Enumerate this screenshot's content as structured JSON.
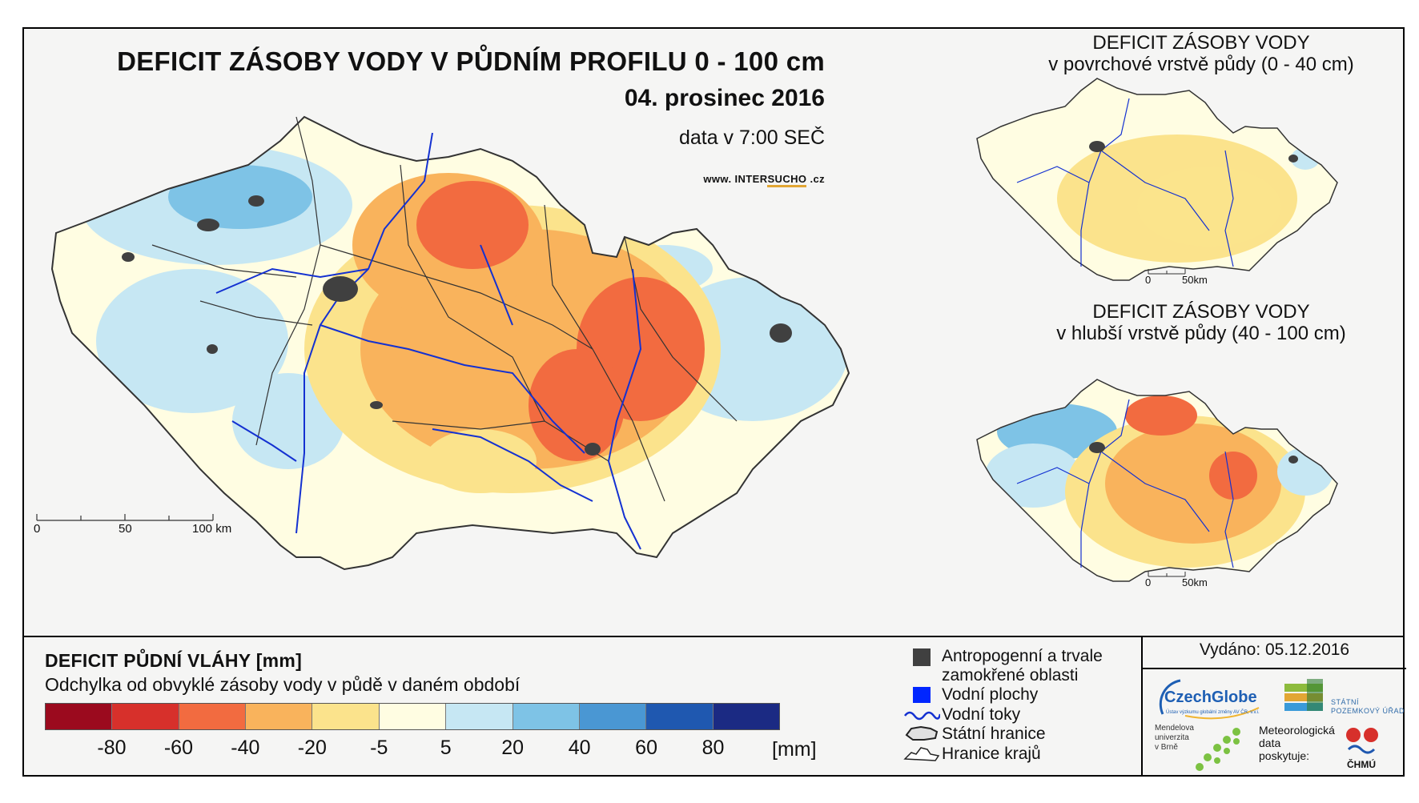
{
  "main": {
    "title": "DEFICIT ZÁSOBY VODY V PŮDNÍM PROFILU 0 - 100 cm",
    "date": "04. prosinec 2016",
    "data_time": "data v 7:00 SEČ",
    "website_prefix": "www. INTER",
    "website_highlight": "SUCHO",
    "website_suffix": " .cz",
    "scale_labels": [
      "0",
      "50",
      "100 km"
    ]
  },
  "top_inset": {
    "title_line1": "DEFICIT ZÁSOBY VODY",
    "title_line2": "v povrchové vrstvě půdy (0 - 40 cm)",
    "scale_labels": [
      "0",
      "50km"
    ]
  },
  "bottom_inset": {
    "title_line1": "DEFICIT ZÁSOBY VODY",
    "title_line2": "v hlubší vrstvě půdy (40 - 100 cm)",
    "scale_labels": [
      "0",
      "50km"
    ]
  },
  "legend": {
    "title": "DEFICIT PŮDNÍ VLÁHY [mm]",
    "subtitle": "Odchylka od obvyklé zásoby vody v půdě v daném období",
    "colors": [
      "#9b0a1e",
      "#d7302b",
      "#f26b40",
      "#f9b35c",
      "#fbe38c",
      "#fffde2",
      "#c6e7f3",
      "#7ec3e6",
      "#4a97d3",
      "#1f58b0",
      "#1b2a83"
    ],
    "ticks": [
      "-80",
      "-60",
      "-40",
      "-20",
      "-5",
      "5",
      "20",
      "40",
      "60",
      "80"
    ],
    "unit": "[mm]",
    "symbols": {
      "anthropogenic_line1": "Antropogenní a trvale",
      "anthropogenic_line2": "zamokřené oblasti",
      "water_bodies": "Vodní plochy",
      "rivers": "Vodní toky",
      "state_border": "Státní hranice",
      "region_border": "Hranice krajů"
    }
  },
  "credits": {
    "issued": "Vydáno: 05.12.2016",
    "czechglobe": "CzechGlobe",
    "czechglobe_sub": "Ústav výzkumu globální změny AV ČR, v.v.i.",
    "spu_line1": "STÁTNÍ",
    "spu_line2": "POZEMKOVÝ ÚŘAD",
    "mendel_line1": "Mendelova",
    "mendel_line2": "univerzita",
    "mendel_line3": "v Brně",
    "met_line1": "Meteorologická",
    "met_line2": "data",
    "met_line3": "poskytuje:",
    "chmu": "ČHMÚ"
  }
}
